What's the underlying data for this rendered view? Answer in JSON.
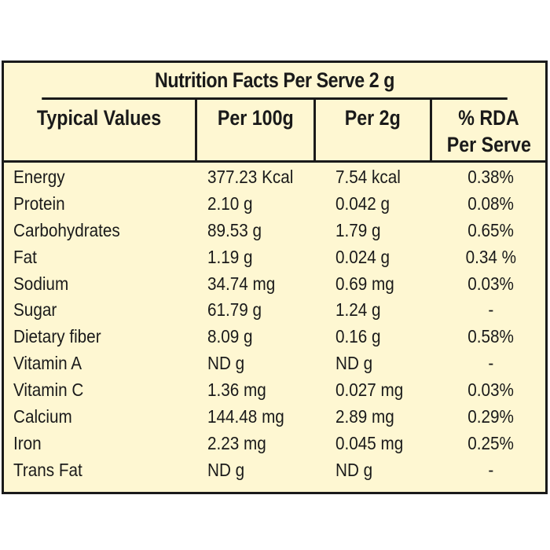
{
  "title": "Nutrition Facts Per Serve 2 g",
  "headers": {
    "typical": "Typical Values",
    "per100": "Per 100g",
    "per2": "Per 2g",
    "rda_line1": "% RDA",
    "rda_line2": "Per Serve"
  },
  "rows": [
    {
      "name": "Energy",
      "per100": "377.23 Kcal",
      "per2": "7.54 kcal",
      "rda": "0.38%"
    },
    {
      "name": "Protein",
      "per100": "2.10 g",
      "per2": "0.042 g",
      "rda": "0.08%"
    },
    {
      "name": "Carbohydrates",
      "per100": "89.53 g",
      "per2": "1.79 g",
      "rda": "0.65%"
    },
    {
      "name": "Fat",
      "per100": "1.19 g",
      "per2": "0.024 g",
      "rda": "0.34 %"
    },
    {
      "name": "Sodium",
      "per100": "34.74 mg",
      "per2": "0.69 mg",
      "rda": "0.03%"
    },
    {
      "name": "Sugar",
      "per100": "61.79 g",
      "per2": "1.24 g",
      "rda": "-"
    },
    {
      "name": "Dietary fiber",
      "per100": "8.09 g",
      "per2": "0.16 g",
      "rda": "0.58%"
    },
    {
      "name": "Vitamin A",
      "per100": "ND g",
      "per2": "ND g",
      "rda": "-"
    },
    {
      "name": "Vitamin C",
      "per100": "1.36 mg",
      "per2": "0.027 mg",
      "rda": "0.03%"
    },
    {
      "name": "Calcium",
      "per100": "144.48 mg",
      "per2": "2.89 mg",
      "rda": "0.29%"
    },
    {
      "name": "Iron",
      "per100": "2.23 mg",
      "per2": "0.045 mg",
      "rda": "0.25%"
    },
    {
      "name": "Trans Fat",
      "per100": "ND g",
      "per2": "ND g",
      "rda": "-"
    }
  ],
  "colors": {
    "background": "#fef7d2",
    "border": "#1a1a1a"
  }
}
